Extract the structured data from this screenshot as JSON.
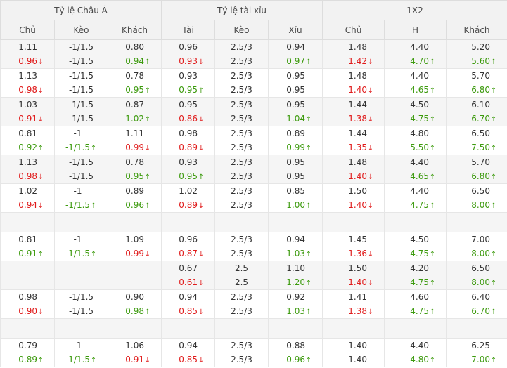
{
  "headers": {
    "groups": [
      "Tỷ lệ Châu Á",
      "Tỷ lệ tài xỉu",
      "1X2"
    ],
    "columns": [
      "Chủ",
      "Kèo",
      "Khách",
      "Tài",
      "Kèo",
      "Xỉu",
      "Chủ",
      "H",
      "Khách"
    ]
  },
  "colors": {
    "down": "#e01b1b",
    "up": "#3c9a0d",
    "header_bg": "#f2f2f2",
    "alt_row_bg": "#f5f5f5"
  },
  "rows": [
    {
      "empty": false,
      "cells": [
        {
          "top": "1.11",
          "bot": "0.96",
          "c": "red",
          "dir": "down"
        },
        {
          "top": "-1/1.5",
          "bot": "-1/1.5",
          "c": "",
          "dir": ""
        },
        {
          "top": "0.80",
          "bot": "0.94",
          "c": "green",
          "dir": "up"
        },
        {
          "top": "0.96",
          "bot": "0.93",
          "c": "red",
          "dir": "down"
        },
        {
          "top": "2.5/3",
          "bot": "2.5/3",
          "c": "",
          "dir": ""
        },
        {
          "top": "0.94",
          "bot": "0.97",
          "c": "green",
          "dir": "up"
        },
        {
          "top": "1.48",
          "bot": "1.42",
          "c": "red",
          "dir": "down"
        },
        {
          "top": "4.40",
          "bot": "4.70",
          "c": "green",
          "dir": "up"
        },
        {
          "top": "5.20",
          "bot": "5.60",
          "c": "green",
          "dir": "up"
        }
      ]
    },
    {
      "empty": false,
      "cells": [
        {
          "top": "1.13",
          "bot": "0.98",
          "c": "red",
          "dir": "down"
        },
        {
          "top": "-1/1.5",
          "bot": "-1/1.5",
          "c": "",
          "dir": ""
        },
        {
          "top": "0.78",
          "bot": "0.95",
          "c": "green",
          "dir": "up"
        },
        {
          "top": "0.93",
          "bot": "0.95",
          "c": "green",
          "dir": "up"
        },
        {
          "top": "2.5/3",
          "bot": "2.5/3",
          "c": "",
          "dir": ""
        },
        {
          "top": "0.95",
          "bot": "0.95",
          "c": "",
          "dir": ""
        },
        {
          "top": "1.48",
          "bot": "1.40",
          "c": "red",
          "dir": "down"
        },
        {
          "top": "4.40",
          "bot": "4.65",
          "c": "green",
          "dir": "up"
        },
        {
          "top": "5.70",
          "bot": "6.80",
          "c": "green",
          "dir": "up"
        }
      ]
    },
    {
      "empty": false,
      "cells": [
        {
          "top": "1.03",
          "bot": "0.91",
          "c": "red",
          "dir": "down"
        },
        {
          "top": "-1/1.5",
          "bot": "-1/1.5",
          "c": "",
          "dir": ""
        },
        {
          "top": "0.87",
          "bot": "1.02",
          "c": "green",
          "dir": "up"
        },
        {
          "top": "0.95",
          "bot": "0.86",
          "c": "red",
          "dir": "down"
        },
        {
          "top": "2.5/3",
          "bot": "2.5/3",
          "c": "",
          "dir": ""
        },
        {
          "top": "0.95",
          "bot": "1.04",
          "c": "green",
          "dir": "up"
        },
        {
          "top": "1.44",
          "bot": "1.38",
          "c": "red",
          "dir": "down"
        },
        {
          "top": "4.50",
          "bot": "4.75",
          "c": "green",
          "dir": "up"
        },
        {
          "top": "6.10",
          "bot": "6.70",
          "c": "green",
          "dir": "up"
        }
      ]
    },
    {
      "empty": false,
      "cells": [
        {
          "top": "0.81",
          "bot": "0.92",
          "c": "green",
          "dir": "up"
        },
        {
          "top": "-1",
          "bot": "-1/1.5",
          "c": "green",
          "dir": "up"
        },
        {
          "top": "1.11",
          "bot": "0.99",
          "c": "red",
          "dir": "down"
        },
        {
          "top": "0.98",
          "bot": "0.89",
          "c": "red",
          "dir": "down"
        },
        {
          "top": "2.5/3",
          "bot": "2.5/3",
          "c": "",
          "dir": ""
        },
        {
          "top": "0.89",
          "bot": "0.99",
          "c": "green",
          "dir": "up"
        },
        {
          "top": "1.44",
          "bot": "1.35",
          "c": "red",
          "dir": "down"
        },
        {
          "top": "4.80",
          "bot": "5.50",
          "c": "green",
          "dir": "up"
        },
        {
          "top": "6.50",
          "bot": "7.50",
          "c": "green",
          "dir": "up"
        }
      ]
    },
    {
      "empty": false,
      "cells": [
        {
          "top": "1.13",
          "bot": "0.98",
          "c": "red",
          "dir": "down"
        },
        {
          "top": "-1/1.5",
          "bot": "-1/1.5",
          "c": "",
          "dir": ""
        },
        {
          "top": "0.78",
          "bot": "0.95",
          "c": "green",
          "dir": "up"
        },
        {
          "top": "0.93",
          "bot": "0.95",
          "c": "green",
          "dir": "up"
        },
        {
          "top": "2.5/3",
          "bot": "2.5/3",
          "c": "",
          "dir": ""
        },
        {
          "top": "0.95",
          "bot": "0.95",
          "c": "",
          "dir": ""
        },
        {
          "top": "1.48",
          "bot": "1.40",
          "c": "red",
          "dir": "down"
        },
        {
          "top": "4.40",
          "bot": "4.65",
          "c": "green",
          "dir": "up"
        },
        {
          "top": "5.70",
          "bot": "6.80",
          "c": "green",
          "dir": "up"
        }
      ]
    },
    {
      "empty": false,
      "cells": [
        {
          "top": "1.02",
          "bot": "0.94",
          "c": "red",
          "dir": "down"
        },
        {
          "top": "-1",
          "bot": "-1/1.5",
          "c": "green",
          "dir": "up"
        },
        {
          "top": "0.89",
          "bot": "0.96",
          "c": "green",
          "dir": "up"
        },
        {
          "top": "1.02",
          "bot": "0.89",
          "c": "red",
          "dir": "down"
        },
        {
          "top": "2.5/3",
          "bot": "2.5/3",
          "c": "",
          "dir": ""
        },
        {
          "top": "0.85",
          "bot": "1.00",
          "c": "green",
          "dir": "up"
        },
        {
          "top": "1.50",
          "bot": "1.40",
          "c": "red",
          "dir": "down"
        },
        {
          "top": "4.40",
          "bot": "4.75",
          "c": "green",
          "dir": "up"
        },
        {
          "top": "6.50",
          "bot": "8.00",
          "c": "green",
          "dir": "up"
        }
      ]
    },
    {
      "empty": true,
      "cells": []
    },
    {
      "empty": false,
      "cells": [
        {
          "top": "0.81",
          "bot": "0.91",
          "c": "green",
          "dir": "up"
        },
        {
          "top": "-1",
          "bot": "-1/1.5",
          "c": "green",
          "dir": "up"
        },
        {
          "top": "1.09",
          "bot": "0.99",
          "c": "red",
          "dir": "down"
        },
        {
          "top": "0.96",
          "bot": "0.87",
          "c": "red",
          "dir": "down"
        },
        {
          "top": "2.5/3",
          "bot": "2.5/3",
          "c": "",
          "dir": ""
        },
        {
          "top": "0.94",
          "bot": "1.03",
          "c": "green",
          "dir": "up"
        },
        {
          "top": "1.45",
          "bot": "1.36",
          "c": "red",
          "dir": "down"
        },
        {
          "top": "4.50",
          "bot": "4.75",
          "c": "green",
          "dir": "up"
        },
        {
          "top": "7.00",
          "bot": "8.00",
          "c": "green",
          "dir": "up"
        }
      ]
    },
    {
      "empty": false,
      "cells": [
        {
          "top": "",
          "bot": "",
          "c": "",
          "dir": ""
        },
        {
          "top": "",
          "bot": "",
          "c": "",
          "dir": ""
        },
        {
          "top": "",
          "bot": "",
          "c": "",
          "dir": ""
        },
        {
          "top": "0.67",
          "bot": "0.61",
          "c": "red",
          "dir": "down"
        },
        {
          "top": "2.5",
          "bot": "2.5",
          "c": "",
          "dir": ""
        },
        {
          "top": "1.10",
          "bot": "1.20",
          "c": "green",
          "dir": "up"
        },
        {
          "top": "1.50",
          "bot": "1.40",
          "c": "red",
          "dir": "down"
        },
        {
          "top": "4.20",
          "bot": "4.75",
          "c": "green",
          "dir": "up"
        },
        {
          "top": "6.50",
          "bot": "8.00",
          "c": "green",
          "dir": "up"
        }
      ]
    },
    {
      "empty": false,
      "cells": [
        {
          "top": "0.98",
          "bot": "0.90",
          "c": "red",
          "dir": "down"
        },
        {
          "top": "-1/1.5",
          "bot": "-1/1.5",
          "c": "",
          "dir": ""
        },
        {
          "top": "0.90",
          "bot": "0.98",
          "c": "green",
          "dir": "up"
        },
        {
          "top": "0.94",
          "bot": "0.85",
          "c": "red",
          "dir": "down"
        },
        {
          "top": "2.5/3",
          "bot": "2.5/3",
          "c": "",
          "dir": ""
        },
        {
          "top": "0.92",
          "bot": "1.03",
          "c": "green",
          "dir": "up"
        },
        {
          "top": "1.41",
          "bot": "1.38",
          "c": "red",
          "dir": "down"
        },
        {
          "top": "4.60",
          "bot": "4.75",
          "c": "green",
          "dir": "up"
        },
        {
          "top": "6.40",
          "bot": "6.70",
          "c": "green",
          "dir": "up"
        }
      ]
    },
    {
      "empty": true,
      "cells": []
    },
    {
      "empty": false,
      "cells": [
        {
          "top": "0.79",
          "bot": "0.89",
          "c": "green",
          "dir": "up"
        },
        {
          "top": "-1",
          "bot": "-1/1.5",
          "c": "green",
          "dir": "up"
        },
        {
          "top": "1.06",
          "bot": "0.91",
          "c": "red",
          "dir": "down"
        },
        {
          "top": "0.94",
          "bot": "0.85",
          "c": "red",
          "dir": "down"
        },
        {
          "top": "2.5/3",
          "bot": "2.5/3",
          "c": "",
          "dir": ""
        },
        {
          "top": "0.88",
          "bot": "0.96",
          "c": "green",
          "dir": "up"
        },
        {
          "top": "1.40",
          "bot": "1.40",
          "c": "",
          "dir": ""
        },
        {
          "top": "4.40",
          "bot": "4.80",
          "c": "green",
          "dir": "up"
        },
        {
          "top": "6.25",
          "bot": "7.00",
          "c": "green",
          "dir": "up"
        }
      ]
    }
  ]
}
